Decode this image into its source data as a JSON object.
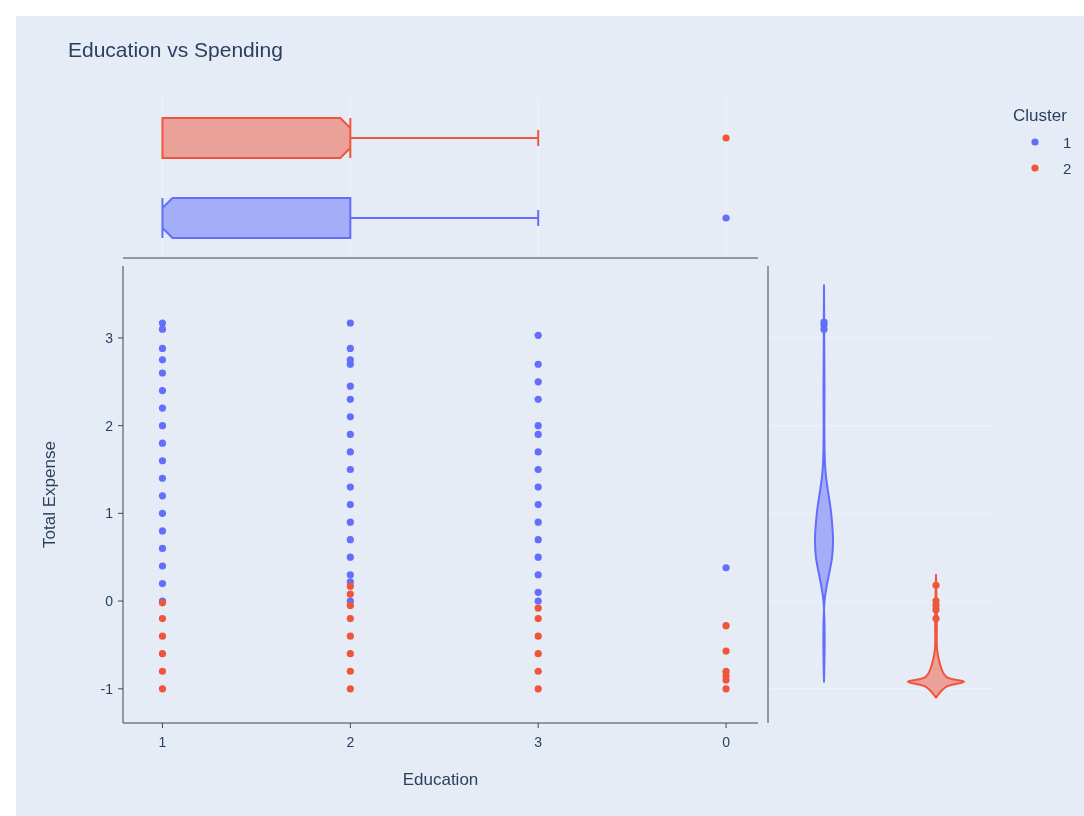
{
  "chart_data": {
    "type": "scatter",
    "title": "Education vs Spending",
    "xlabel": "Education",
    "ylabel": "Total Expense",
    "legend_title": "Cluster",
    "legend": "top right",
    "marker": "circle",
    "categories": [
      "1",
      "2",
      "3",
      "0"
    ],
    "ylim": [
      -1.39,
      3.82
    ],
    "yticks": [
      -1,
      0,
      1,
      2,
      3
    ],
    "series": [
      {
        "name": "1",
        "color": "#636efa",
        "x": [
          "1",
          "1",
          "1",
          "1",
          "1",
          "1",
          "1",
          "1",
          "1",
          "1",
          "1",
          "1",
          "1",
          "1",
          "1",
          "1",
          "1",
          "1",
          "2",
          "2",
          "2",
          "2",
          "2",
          "2",
          "2",
          "2",
          "2",
          "2",
          "2",
          "2",
          "2",
          "2",
          "2",
          "2",
          "2",
          "2",
          "3",
          "3",
          "3",
          "3",
          "3",
          "3",
          "3",
          "3",
          "3",
          "3",
          "3",
          "3",
          "3",
          "3",
          "3",
          "3",
          "0"
        ],
        "values": [
          0.0,
          0.2,
          0.4,
          0.6,
          0.8,
          1.0,
          1.2,
          1.4,
          1.6,
          1.8,
          2.0,
          2.2,
          2.4,
          2.6,
          2.75,
          2.88,
          3.1,
          3.17,
          0.0,
          0.22,
          0.3,
          0.5,
          0.7,
          0.9,
          1.1,
          1.3,
          1.5,
          1.7,
          1.9,
          2.1,
          2.3,
          2.45,
          2.7,
          2.75,
          2.88,
          3.17,
          0.0,
          0.1,
          0.3,
          0.5,
          0.7,
          0.9,
          1.1,
          1.3,
          1.5,
          1.7,
          1.9,
          2.0,
          2.3,
          2.5,
          2.7,
          3.03,
          0.38
        ]
      },
      {
        "name": "2",
        "color": "#ef553b",
        "x": [
          "1",
          "1",
          "1",
          "1",
          "1",
          "1",
          "2",
          "2",
          "2",
          "2",
          "2",
          "2",
          "2",
          "2",
          "3",
          "3",
          "3",
          "3",
          "3",
          "3",
          "0",
          "0",
          "0",
          "0",
          "0",
          "0"
        ],
        "values": [
          -1.0,
          -0.8,
          -0.6,
          -0.4,
          -0.2,
          -0.02,
          -1.0,
          -0.8,
          -0.6,
          -0.4,
          -0.2,
          -0.05,
          0.08,
          0.17,
          -1.0,
          -0.8,
          -0.6,
          -0.4,
          -0.2,
          -0.08,
          -0.28,
          -0.57,
          -0.8,
          -0.85,
          -0.9,
          -1.0
        ]
      }
    ]
  }
}
